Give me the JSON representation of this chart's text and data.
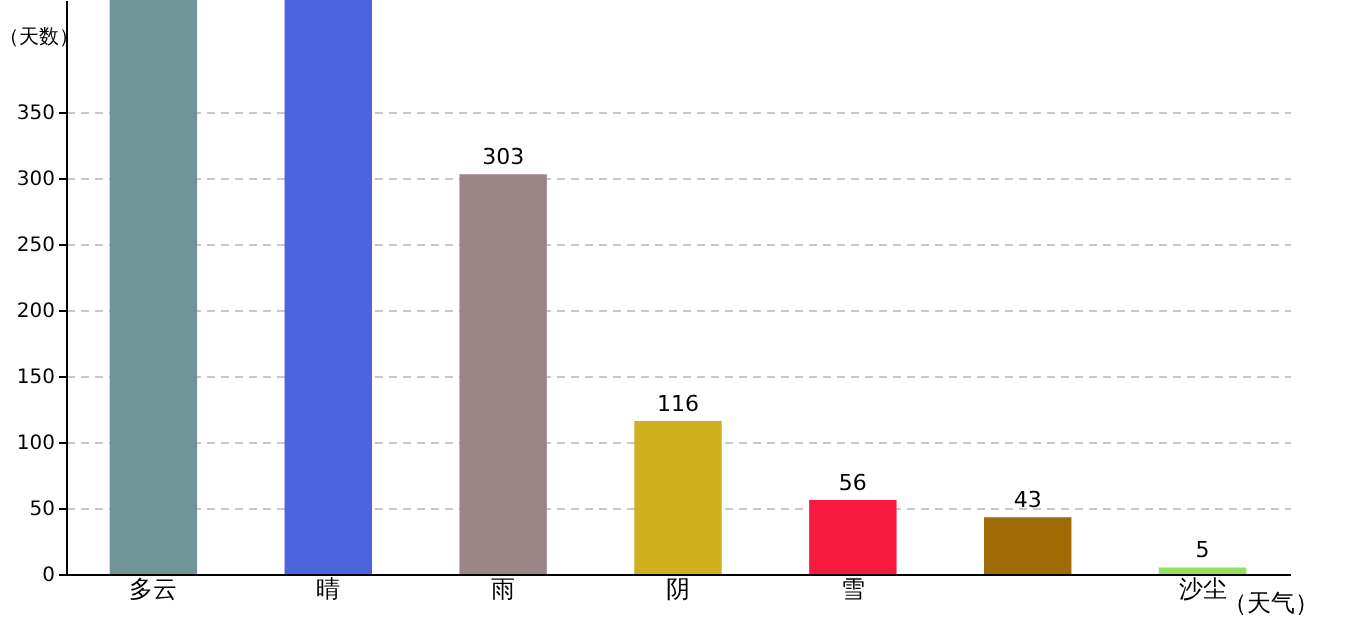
{
  "chart_data": {
    "type": "bar",
    "ylabel": "（天数）",
    "xlabel": "（天气）",
    "categories": [
      "多云",
      "晴",
      "雨",
      "阴",
      "雪",
      null,
      "沙尘"
    ],
    "values": [
      435,
      435,
      303,
      116,
      56,
      43,
      5
    ],
    "colors": [
      "#6f9598",
      "#4c64de",
      "#9b8586",
      "#cfb01e",
      "#f8193f",
      "#a06a05",
      "#93e05a"
    ],
    "value_labels": [
      null,
      null,
      "303",
      "116",
      "56",
      "43",
      "5"
    ],
    "ylim": [
      0,
      435
    ],
    "yticks": [
      0,
      50,
      100,
      150,
      200,
      250,
      300,
      350
    ],
    "grid": "y"
  }
}
